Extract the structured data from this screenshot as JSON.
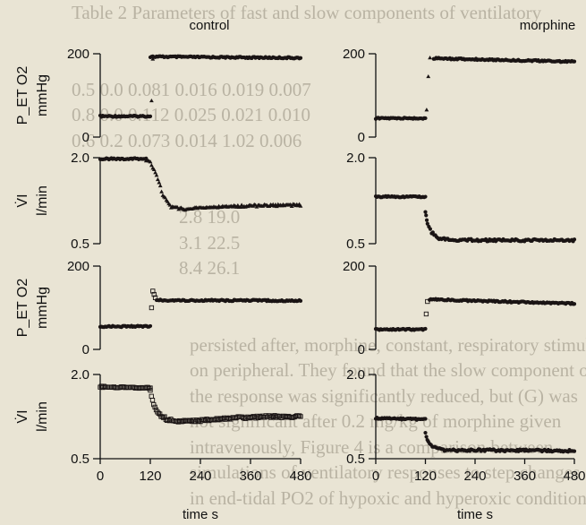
{
  "background_text": [
    "Table 2 Parameters of fast and slow components of ventilatory",
    "",
    "",
    "0.5  0.0   0.081   0.016  0.019  0.007",
    "0.8  0.0   0.112   0.025  0.021  0.010",
    "0.6  0.2   0.073   0.014  1.02   0.006",
    "",
    "",
    "         2.8          19.0",
    "         3.1          22.5",
    "         8.4          26.1",
    "",
    "",
    "persisted after, morphine, constant, respiratory stimuli",
    "on peripheral. They found that the slow component of",
    "the response was significantly reduced, but (G) was",
    "not significant after 0.2 mg/kg of morphine given",
    "intravenously, Figure 4 is a comparison between",
    "simulations of ventilatory responses to step changes",
    "in end-tidal PO2 of hypoxic and hyperoxic conditions"
  ],
  "chart_data": [
    {
      "type": "scatter",
      "panel": "top-left",
      "title": "control",
      "ylabel": "P_ET O2\nmmHg",
      "ylim": [
        0,
        200
      ],
      "yticks": [
        "200",
        "0"
      ],
      "ytick_values": [
        200,
        0
      ],
      "xlim": [
        0,
        480
      ],
      "xticks": [],
      "segments": [
        {
          "x": [
            0,
            120
          ],
          "y": [
            50,
            50
          ],
          "marker": "dot"
        },
        {
          "x": [
            120,
            480
          ],
          "y": [
            193,
            190
          ],
          "marker": "dot"
        }
      ],
      "points": [
        {
          "x": 123,
          "y": 87,
          "marker": "triangle"
        },
        {
          "x": 126,
          "y": 187,
          "marker": "triangle"
        }
      ]
    },
    {
      "type": "scatter",
      "panel": "top-right",
      "title": "morphine",
      "ylabel": "",
      "ylim": [
        0,
        200
      ],
      "yticks": [
        "200",
        "0"
      ],
      "ytick_values": [
        200,
        0
      ],
      "xlim": [
        0,
        480
      ],
      "xticks": [],
      "segments": [
        {
          "x": [
            0,
            120
          ],
          "y": [
            45,
            45
          ],
          "marker": "dot"
        },
        {
          "x": [
            140,
            480
          ],
          "y": [
            189,
            181
          ],
          "marker": "dot"
        }
      ],
      "points": [
        {
          "x": 123,
          "y": 65,
          "marker": "triangle"
        },
        {
          "x": 127,
          "y": 145,
          "marker": "triangle"
        },
        {
          "x": 131,
          "y": 190,
          "marker": "triangle"
        }
      ]
    },
    {
      "type": "scatter",
      "panel": "upper-mid-left",
      "ylabel": "V̇I\nl/min",
      "ylim": [
        0.5,
        2.0
      ],
      "yticks": [
        "2.0",
        "0.5"
      ],
      "ytick_values": [
        2.0,
        0.5
      ],
      "xlim": [
        0,
        480
      ],
      "xticks": [],
      "segments": [
        {
          "x": [
            0,
            110
          ],
          "y": [
            1.98,
            1.98
          ],
          "marker": "dot"
        }
      ],
      "curves": [
        {
          "x": [
            110,
            120,
            135,
            150,
            170,
            200,
            260,
            360,
            480
          ],
          "y": [
            1.95,
            1.92,
            1.7,
            1.35,
            1.14,
            1.1,
            1.13,
            1.16,
            1.17
          ],
          "marker": "triangle"
        }
      ]
    },
    {
      "type": "scatter",
      "panel": "upper-mid-right",
      "ylabel": "",
      "ylim": [
        0.5,
        2.0
      ],
      "yticks": [
        "2.0",
        "0.5"
      ],
      "ytick_values": [
        2.0,
        0.5
      ],
      "xlim": [
        0,
        480
      ],
      "xticks": [],
      "segments": [
        {
          "x": [
            0,
            120
          ],
          "y": [
            1.32,
            1.32
          ],
          "marker": "dot"
        }
      ],
      "curves": [
        {
          "x": [
            120,
            125,
            135,
            150,
            180,
            260,
            480
          ],
          "y": [
            1.05,
            0.85,
            0.7,
            0.6,
            0.57,
            0.56,
            0.56
          ],
          "marker": "dot"
        }
      ]
    },
    {
      "type": "scatter",
      "panel": "lower-mid-left",
      "ylabel": "P_ET O2\nmmHg",
      "ylim": [
        0,
        200
      ],
      "yticks": [
        "200",
        "0"
      ],
      "ytick_values": [
        200,
        0
      ],
      "xlim": [
        0,
        480
      ],
      "xticks": [],
      "segments": [
        {
          "x": [
            0,
            120
          ],
          "y": [
            55,
            55
          ],
          "marker": "dot"
        },
        {
          "x": [
            135,
            480
          ],
          "y": [
            118,
            117
          ],
          "marker": "dot"
        }
      ],
      "points": [
        {
          "x": 123,
          "y": 100,
          "marker": "square"
        },
        {
          "x": 126,
          "y": 140,
          "marker": "square"
        },
        {
          "x": 129,
          "y": 132,
          "marker": "square"
        },
        {
          "x": 132,
          "y": 124,
          "marker": "square"
        }
      ]
    },
    {
      "type": "scatter",
      "panel": "lower-mid-right",
      "ylabel": "",
      "ylim": [
        0,
        200
      ],
      "yticks": [
        "200",
        "0"
      ],
      "ytick_values": [
        200,
        0
      ],
      "xlim": [
        0,
        480
      ],
      "xticks": [],
      "segments": [
        {
          "x": [
            0,
            120
          ],
          "y": [
            48,
            48
          ],
          "marker": "dot"
        },
        {
          "x": [
            130,
            480
          ],
          "y": [
            120,
            110
          ],
          "marker": "dot"
        }
      ],
      "points": [
        {
          "x": 122,
          "y": 85,
          "marker": "square"
        },
        {
          "x": 125,
          "y": 115,
          "marker": "square"
        }
      ]
    },
    {
      "type": "scatter",
      "panel": "bottom-left",
      "ylabel": "V̇I\nl/min",
      "ylim": [
        0.5,
        2.0
      ],
      "yticks": [
        "2.0",
        "0.5"
      ],
      "ytick_values": [
        2.0,
        0.5
      ],
      "xlim": [
        0,
        480
      ],
      "xticks": [
        "0",
        "120",
        "240",
        "360",
        "480"
      ],
      "xtick_values": [
        0,
        120,
        240,
        360,
        480
      ],
      "xlabel": "time  s",
      "segments": [
        {
          "x": [
            0,
            120
          ],
          "y": [
            1.78,
            1.76
          ],
          "marker": "square"
        }
      ],
      "curves": [
        {
          "x": [
            120,
            128,
            140,
            160,
            190,
            240,
            300,
            400,
            480
          ],
          "y": [
            1.7,
            1.45,
            1.3,
            1.2,
            1.16,
            1.18,
            1.22,
            1.25,
            1.25
          ],
          "marker": "square"
        }
      ]
    },
    {
      "type": "scatter",
      "panel": "bottom-right",
      "ylabel": "",
      "ylim": [
        0.5,
        2.0
      ],
      "yticks": [
        "2.0",
        "0.5"
      ],
      "ytick_values": [
        2.0,
        0.5
      ],
      "xlim": [
        0,
        480
      ],
      "xticks": [
        "0",
        "120",
        "240",
        "360",
        "480"
      ],
      "xtick_values": [
        0,
        120,
        240,
        360,
        480
      ],
      "xlabel": "time  s",
      "segments": [
        {
          "x": [
            0,
            120
          ],
          "y": [
            1.22,
            1.2
          ],
          "marker": "dot"
        }
      ],
      "curves": [
        {
          "x": [
            120,
            127,
            140,
            160,
            200,
            300,
            480
          ],
          "y": [
            0.95,
            0.8,
            0.7,
            0.66,
            0.65,
            0.65,
            0.64
          ],
          "marker": "dot"
        }
      ]
    }
  ]
}
